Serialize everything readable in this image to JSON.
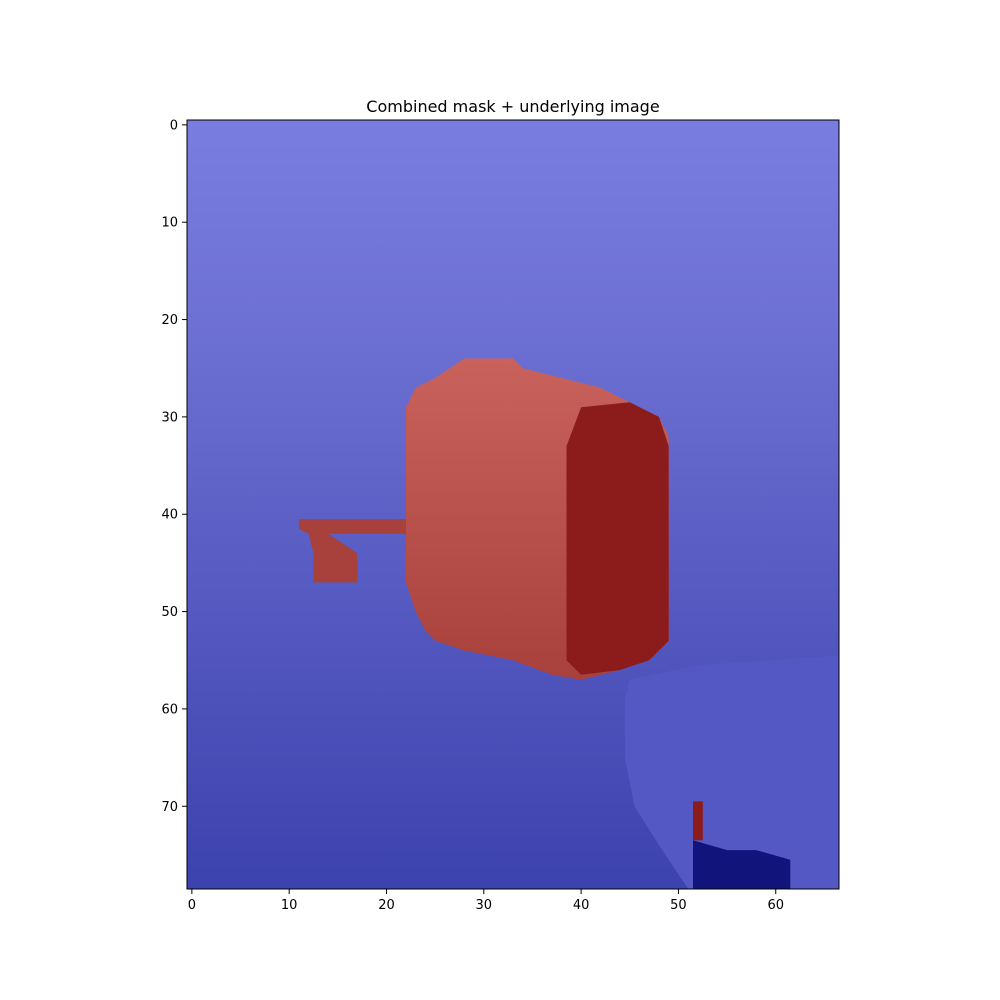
{
  "chart_data": {
    "type": "heatmap",
    "title": "Combined mask + underlying image",
    "xlabel": "",
    "ylabel": "",
    "image_size": {
      "columns": 67,
      "rows": 79
    },
    "xlim": [
      -0.5,
      66.5
    ],
    "ylim": [
      78.5,
      -0.5
    ],
    "x_ticks": [
      0,
      10,
      20,
      30,
      40,
      50,
      60
    ],
    "x_tick_labels": [
      "0",
      "10",
      "20",
      "30",
      "40",
      "50",
      "60"
    ],
    "y_ticks": [
      0,
      10,
      20,
      30,
      40,
      50,
      60,
      70
    ],
    "y_tick_labels": [
      "0",
      "10",
      "20",
      "30",
      "40",
      "50",
      "60",
      "70"
    ],
    "y_axis_inverted": true,
    "grid": false,
    "legend": "none",
    "colors": {
      "background_light": "#7a7de0",
      "background_dark": "#3c42ae",
      "mask_light": "#c9625c",
      "mask_dark": "#8c1c1c",
      "shadow_dark": "#11147a"
    },
    "regions": [
      {
        "name": "mask-object",
        "polygon": [
          [
            28,
            24
          ],
          [
            33,
            24
          ],
          [
            34,
            25
          ],
          [
            38,
            26
          ],
          [
            42,
            27
          ],
          [
            46,
            29
          ],
          [
            48,
            30
          ],
          [
            49,
            32
          ],
          [
            49,
            38
          ],
          [
            49,
            48
          ],
          [
            49,
            53
          ],
          [
            47,
            55
          ],
          [
            44,
            56
          ],
          [
            40,
            57
          ],
          [
            37,
            56.5
          ],
          [
            33,
            55
          ],
          [
            28,
            54
          ],
          [
            25,
            53
          ],
          [
            24,
            52
          ],
          [
            23,
            50
          ],
          [
            22,
            47
          ],
          [
            22,
            42
          ],
          [
            22,
            34
          ],
          [
            22,
            29
          ],
          [
            23,
            27
          ],
          [
            25,
            26
          ]
        ]
      },
      {
        "name": "mask-object-dark-face",
        "polygon": [
          [
            40,
            29
          ],
          [
            45,
            28.5
          ],
          [
            48,
            30
          ],
          [
            49,
            33
          ],
          [
            49,
            40
          ],
          [
            49,
            53
          ],
          [
            47,
            55
          ],
          [
            44,
            56
          ],
          [
            40,
            56.5
          ],
          [
            38.5,
            55
          ],
          [
            38.5,
            40
          ],
          [
            38.5,
            33
          ]
        ]
      },
      {
        "name": "mask-handle",
        "polygon": [
          [
            11,
            40.5
          ],
          [
            22,
            40.5
          ],
          [
            22,
            42
          ],
          [
            14,
            42
          ],
          [
            17,
            44
          ],
          [
            17,
            47
          ],
          [
            12.5,
            47
          ],
          [
            12.5,
            44
          ],
          [
            12,
            42
          ],
          [
            11,
            41.5
          ]
        ]
      },
      {
        "name": "mask-small-patch",
        "polygon": [
          [
            51.5,
            69.5
          ],
          [
            52.5,
            69.5
          ],
          [
            52.5,
            73.5
          ],
          [
            51.5,
            73.5
          ]
        ]
      },
      {
        "name": "secondary-object",
        "polygon": [
          [
            45,
            57
          ],
          [
            52,
            55.5
          ],
          [
            60,
            55
          ],
          [
            66.5,
            54.5
          ],
          [
            66.5,
            78.5
          ],
          [
            51,
            78.5
          ],
          [
            48,
            74
          ],
          [
            45.5,
            70
          ],
          [
            44.5,
            65
          ],
          [
            44.5,
            59
          ]
        ]
      },
      {
        "name": "shadow-region",
        "polygon": [
          [
            51.5,
            73.5
          ],
          [
            55,
            74.5
          ],
          [
            58,
            74.5
          ],
          [
            61.5,
            75.5
          ],
          [
            61.5,
            78.5
          ],
          [
            51.5,
            78.5
          ]
        ]
      }
    ]
  }
}
